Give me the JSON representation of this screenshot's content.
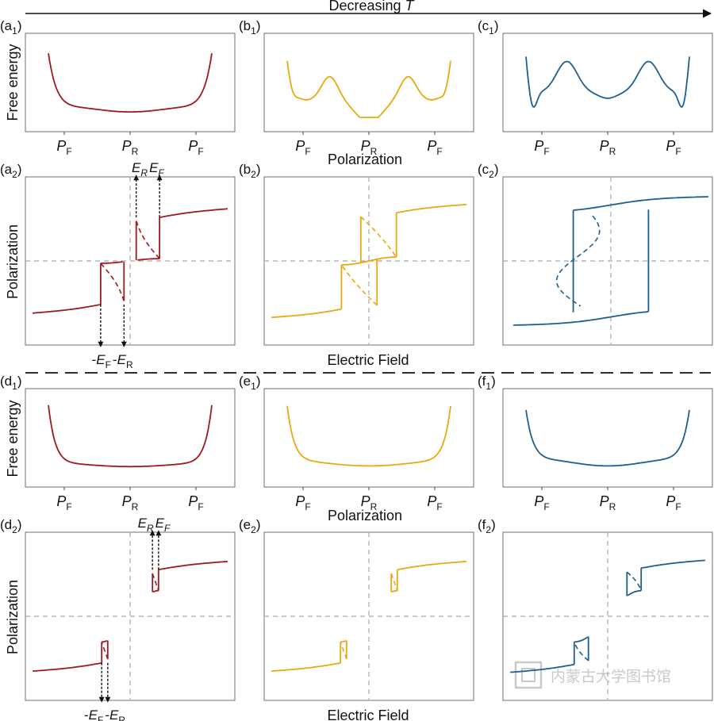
{
  "header": {
    "prefix": "Decreasing ",
    "variable": "T"
  },
  "axis_labels": {
    "free_energy": "Free energy",
    "polarization_x": "Polarization",
    "polarization_y": "Polarization",
    "electric_field": "Electric Field"
  },
  "tick_labels": {
    "pf_main": "P",
    "pf_sub": "F",
    "pr_main": "P",
    "pr_sub": "R"
  },
  "field_labels": {
    "e": "E",
    "r": "R",
    "f": "F",
    "minus": "-"
  },
  "colors": {
    "red": "#a0191d",
    "yellow": "#e8a90f",
    "blue": "#1e5f8e",
    "ref_line": "#b5b5b5"
  },
  "watermark": "内蒙古大学图书馆",
  "panels": [
    {
      "id": "a1",
      "letter": "a",
      "num": "1",
      "kind": "energy",
      "color": "red",
      "shape": "single_shoulders"
    },
    {
      "id": "b1",
      "letter": "b",
      "num": "1",
      "kind": "energy",
      "color": "yellow",
      "shape": "triple_well_shallow"
    },
    {
      "id": "c1",
      "letter": "c",
      "num": "1",
      "kind": "energy",
      "color": "blue",
      "shape": "triple_well_deep"
    },
    {
      "id": "a2",
      "letter": "a",
      "num": "2",
      "kind": "loop",
      "color": "red",
      "loop": "double_small",
      "field_markers": true
    },
    {
      "id": "b2",
      "letter": "b",
      "num": "2",
      "kind": "loop",
      "color": "yellow",
      "loop": "double_wide"
    },
    {
      "id": "c2",
      "letter": "c",
      "num": "2",
      "kind": "loop",
      "color": "blue",
      "loop": "single_square"
    },
    {
      "id": "d1",
      "letter": "d",
      "num": "1",
      "kind": "energy",
      "color": "red",
      "shape": "flat_bottom"
    },
    {
      "id": "e1",
      "letter": "e",
      "num": "1",
      "kind": "energy",
      "color": "yellow",
      "shape": "flat_bottom_sloped"
    },
    {
      "id": "f1",
      "letter": "f",
      "num": "1",
      "kind": "energy",
      "color": "blue",
      "shape": "single_shoulders_deep"
    },
    {
      "id": "d2",
      "letter": "d",
      "num": "2",
      "kind": "loop",
      "color": "red",
      "loop": "double_narrow",
      "field_markers": true
    },
    {
      "id": "e2",
      "letter": "e",
      "num": "2",
      "kind": "loop",
      "color": "yellow",
      "loop": "double_narrow"
    },
    {
      "id": "f2",
      "letter": "f",
      "num": "2",
      "kind": "loop",
      "color": "blue",
      "loop": "double_medium"
    }
  ],
  "chart_data": [
    {
      "type": "line",
      "panel": "a1",
      "xlabel": "",
      "ylabel": "Free energy",
      "x_ticks": [
        "P_F",
        "P_R",
        "P_F"
      ]
    },
    {
      "type": "line",
      "panel": "b1",
      "xlabel": "",
      "ylabel": "",
      "x_ticks": [
        "P_F",
        "P_R",
        "P_F"
      ]
    },
    {
      "type": "line",
      "panel": "c1",
      "xlabel": "",
      "ylabel": "",
      "x_ticks": [
        "P_F",
        "P_R",
        "P_F"
      ]
    },
    {
      "type": "line",
      "panel": "a2",
      "xlabel": "",
      "ylabel": "Polarization",
      "annotations": [
        "E_R",
        "E_F",
        "-E_F",
        "-E_R"
      ]
    },
    {
      "type": "line",
      "panel": "b2",
      "xlabel": "Electric Field",
      "ylabel": ""
    },
    {
      "type": "line",
      "panel": "c2",
      "xlabel": "",
      "ylabel": ""
    },
    {
      "type": "line",
      "panel": "d1",
      "xlabel": "",
      "ylabel": "Free energy",
      "x_ticks": [
        "P_F",
        "P_R",
        "P_F"
      ]
    },
    {
      "type": "line",
      "panel": "e1",
      "xlabel": "Polarization",
      "ylabel": "",
      "x_ticks": [
        "P_F",
        "P_R",
        "P_F"
      ]
    },
    {
      "type": "line",
      "panel": "f1",
      "xlabel": "",
      "ylabel": "",
      "x_ticks": [
        "P_F",
        "P_R",
        "P_F"
      ]
    },
    {
      "type": "line",
      "panel": "d2",
      "xlabel": "",
      "ylabel": "Polarization",
      "annotations": [
        "E_R",
        "E_F",
        "-E_F",
        "-E_R"
      ]
    },
    {
      "type": "line",
      "panel": "e2",
      "xlabel": "Electric Field",
      "ylabel": ""
    },
    {
      "type": "line",
      "panel": "f2",
      "xlabel": "",
      "ylabel": ""
    }
  ]
}
